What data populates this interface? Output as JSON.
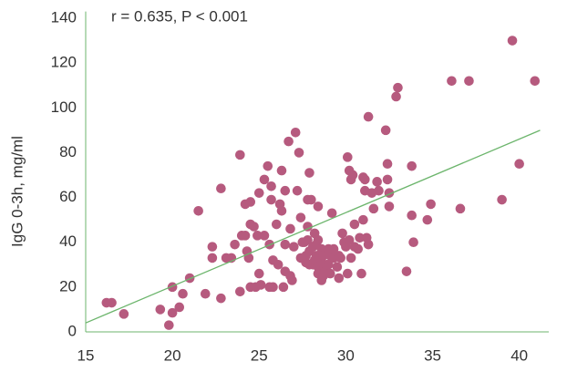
{
  "chart_data": {
    "type": "scatter",
    "annotation": "r = 0.635, P < 0.001",
    "y_label": "IgG 0-3h, mg/ml",
    "color": "#b65a7e",
    "trend_color": "#6cb56c",
    "xlim": [
      15,
      41.7
    ],
    "ylim": [
      0,
      143
    ],
    "xticks": [
      15,
      20,
      25,
      30,
      35,
      40
    ],
    "yticks": [
      0,
      20,
      40,
      60,
      80,
      100,
      120,
      140
    ],
    "grid": false,
    "trendline": {
      "x": [
        15,
        41.2
      ],
      "y": [
        4,
        90
      ]
    },
    "x": [
      16.2,
      16.5,
      17.2,
      19.3,
      19.8,
      20.0,
      20.0,
      20.4,
      20.6,
      21.0,
      21.5,
      21.9,
      22.3,
      22.3,
      22.8,
      22.8,
      23.1,
      23.4,
      23.6,
      23.9,
      23.9,
      24.0,
      24.2,
      24.2,
      24.3,
      24.4,
      24.5,
      24.5,
      24.5,
      24.7,
      24.8,
      24.9,
      25.0,
      25.0,
      25.1,
      25.3,
      25.3,
      25.5,
      25.6,
      25.6,
      25.7,
      25.7,
      25.8,
      25.8,
      26.0,
      26.1,
      26.2,
      26.3,
      26.3,
      26.4,
      26.5,
      26.5,
      26.5,
      26.7,
      26.8,
      26.8,
      26.9,
      27.0,
      27.1,
      27.2,
      27.3,
      27.4,
      27.4,
      27.5,
      27.6,
      27.7,
      27.7,
      27.8,
      27.8,
      27.8,
      27.9,
      27.9,
      27.9,
      28.0,
      28.1,
      28.1,
      28.2,
      28.2,
      28.3,
      28.3,
      28.4,
      28.4,
      28.4,
      28.4,
      28.6,
      28.6,
      28.6,
      28.7,
      28.7,
      28.8,
      28.9,
      29.0,
      29.0,
      29.1,
      29.1,
      29.2,
      29.3,
      29.3,
      29.5,
      29.6,
      29.6,
      29.7,
      29.8,
      29.9,
      30.0,
      30.1,
      30.1,
      30.2,
      30.2,
      30.3,
      30.3,
      30.4,
      30.5,
      30.5,
      30.7,
      30.8,
      30.9,
      31.0,
      31.0,
      31.1,
      31.1,
      31.2,
      31.3,
      31.3,
      31.5,
      31.6,
      31.8,
      31.9,
      32.3,
      32.4,
      32.4,
      32.5,
      32.5,
      32.9,
      33.0,
      33.5,
      33.8,
      33.8,
      33.9,
      34.7,
      34.9,
      36.1,
      36.6,
      37.1,
      39.0,
      39.6,
      40.0,
      40.9
    ],
    "values": [
      13,
      13,
      8,
      10,
      3,
      8.5,
      20,
      11,
      17,
      24,
      54,
      17,
      38,
      33,
      64,
      15,
      33,
      33,
      39,
      79,
      18,
      43,
      57,
      43,
      36,
      33,
      58,
      48,
      20,
      47,
      20,
      43,
      62,
      26,
      21,
      68,
      43,
      74,
      39,
      20,
      65,
      59,
      32,
      20,
      48,
      30,
      57,
      72,
      54,
      20,
      27,
      39,
      63,
      85,
      46,
      25,
      23,
      38,
      89,
      63,
      80,
      51,
      33,
      40,
      40,
      31,
      34,
      47,
      41,
      59,
      71,
      36,
      30,
      59,
      30,
      38,
      32,
      44,
      34,
      39,
      29,
      26,
      56,
      41,
      37,
      31,
      23,
      34,
      25,
      27,
      30,
      37,
      30,
      34,
      26,
      53,
      37,
      33,
      29,
      24,
      34,
      33,
      44,
      40,
      38,
      78,
      26,
      72,
      41,
      33,
      68,
      70,
      48,
      38,
      37,
      42,
      26,
      69,
      50,
      68,
      63,
      42,
      96,
      39,
      62,
      55,
      67,
      63,
      90,
      75,
      68,
      56,
      62,
      105,
      109,
      27,
      74,
      52,
      40,
      50,
      57,
      112,
      55,
      112,
      59,
      130,
      75,
      112
    ]
  }
}
